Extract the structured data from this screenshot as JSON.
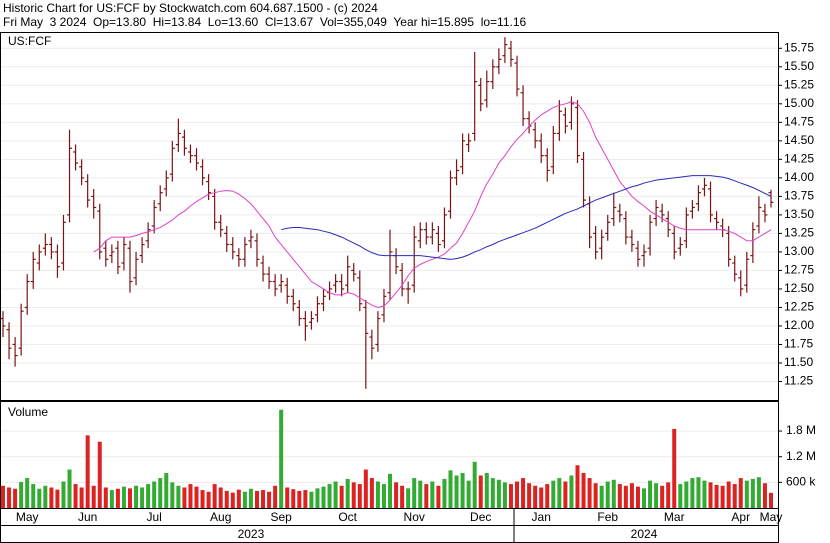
{
  "chart_data": {
    "type": "ohlc",
    "title": "Historic Chart for US:FCF by Stockwatch.com 604.687.1500 - (c) 2024",
    "subtitle": "Fri May  3 2024  Op=13.80  Hi=13.84  Lo=13.60  Cl=13.67  Vol=355,049  Year hi=15.895  lo=11.16",
    "symbol": "US:FCF",
    "grid": true,
    "ohlc_color": "#7a1414",
    "categories": [
      null,
      null,
      null,
      null,
      "May",
      null,
      null,
      null,
      null,
      null,
      null,
      null,
      null,
      null,
      "Jun",
      null,
      null,
      null,
      null,
      null,
      null,
      null,
      null,
      null,
      null,
      "Jul",
      null,
      null,
      null,
      null,
      null,
      null,
      null,
      null,
      null,
      null,
      "Aug",
      null,
      null,
      null,
      null,
      null,
      null,
      null,
      null,
      null,
      "Sep",
      null,
      null,
      null,
      null,
      null,
      null,
      null,
      null,
      null,
      null,
      "Oct",
      null,
      null,
      null,
      null,
      null,
      null,
      null,
      null,
      null,
      null,
      "Nov",
      null,
      null,
      null,
      null,
      null,
      null,
      null,
      null,
      null,
      null,
      "Dec",
      null,
      null,
      null,
      null,
      null,
      null,
      null,
      null,
      null,
      "Jan",
      null,
      null,
      null,
      null,
      null,
      null,
      null,
      null,
      null,
      null,
      "Feb",
      null,
      null,
      null,
      null,
      null,
      null,
      null,
      null,
      null,
      null,
      "Mar",
      null,
      null,
      null,
      null,
      null,
      null,
      null,
      null,
      null,
      null,
      "Apr",
      null,
      null,
      null,
      null,
      "May"
    ],
    "years": [
      null,
      null,
      null,
      null,
      null,
      null,
      null,
      null,
      null,
      null,
      null,
      null,
      null,
      null,
      null,
      null,
      null,
      null,
      null,
      null,
      null,
      null,
      null,
      null,
      null,
      null,
      null,
      null,
      null,
      null,
      null,
      null,
      null,
      null,
      null,
      null,
      null,
      null,
      null,
      null,
      null,
      "2023",
      null,
      null,
      null,
      null,
      null,
      null,
      null,
      null,
      null,
      null,
      null,
      null,
      null,
      null,
      null,
      null,
      null,
      null,
      null,
      null,
      null,
      null,
      null,
      null,
      null,
      null,
      null,
      null,
      null,
      null,
      null,
      null,
      null,
      null,
      null,
      null,
      null,
      null,
      null,
      null,
      null,
      null,
      null,
      null,
      null,
      null,
      null,
      null,
      null,
      null,
      null,
      null,
      null,
      null,
      null,
      null,
      null,
      null,
      null,
      null,
      null,
      null,
      null,
      null,
      "2024",
      null,
      null,
      null,
      null,
      null,
      null,
      null,
      null,
      null,
      null,
      null,
      null,
      null,
      null,
      null,
      null,
      null,
      null,
      null,
      null
    ],
    "open": [
      12.1,
      11.95,
      11.75,
      11.7,
      12.25,
      12.6,
      12.85,
      13.05,
      13.1,
      13.0,
      12.85,
      13.5,
      14.35,
      14.15,
      13.95,
      13.75,
      13.55,
      13.05,
      12.95,
      13.05,
      12.85,
      13.05,
      12.65,
      12.95,
      13.15,
      13.35,
      13.65,
      13.85,
      14.05,
      14.45,
      14.55,
      14.35,
      14.3,
      14.15,
      13.95,
      13.75,
      13.4,
      13.25,
      13.1,
      12.95,
      12.9,
      13.15,
      13.15,
      12.85,
      12.7,
      12.6,
      12.55,
      12.55,
      12.4,
      12.25,
      12.1,
      12.05,
      12.15,
      12.3,
      12.45,
      12.55,
      12.6,
      12.55,
      12.75,
      12.65,
      12.25,
      11.85,
      11.75,
      12.15,
      12.45,
      12.95,
      12.75,
      12.5,
      12.55,
      13.15,
      13.3,
      13.2,
      13.25,
      13.15,
      13.55,
      14.0,
      14.15,
      14.45,
      14.6,
      15.25,
      15.05,
      15.3,
      15.5,
      15.65,
      15.75,
      15.55,
      15.15,
      14.8,
      14.65,
      14.5,
      14.3,
      14.15,
      14.6,
      14.85,
      14.75,
      14.95,
      14.25,
      13.65,
      13.25,
      13.05,
      13.25,
      13.45,
      13.55,
      13.45,
      13.2,
      13.05,
      12.95,
      13.05,
      13.45,
      13.55,
      13.45,
      13.25,
      13.05,
      13.15,
      13.55,
      13.65,
      13.85,
      13.85,
      13.45,
      13.35,
      13.25,
      12.85,
      12.65,
      12.55,
      12.95,
      13.35,
      13.55,
      13.8
    ],
    "high": [
      12.2,
      12.05,
      11.85,
      12.3,
      12.7,
      13.0,
      13.1,
      13.25,
      13.2,
      13.1,
      13.5,
      14.65,
      14.45,
      14.25,
      14.05,
      13.85,
      13.65,
      13.15,
      13.1,
      13.15,
      13.2,
      13.15,
      13.0,
      13.2,
      13.4,
      13.7,
      13.9,
      14.1,
      14.5,
      14.8,
      14.65,
      14.45,
      14.4,
      14.25,
      14.05,
      13.85,
      13.5,
      13.35,
      13.2,
      13.05,
      13.2,
      13.3,
      13.25,
      12.95,
      12.8,
      12.7,
      12.7,
      12.65,
      12.5,
      12.35,
      12.2,
      12.2,
      12.4,
      12.5,
      12.6,
      12.7,
      12.7,
      12.95,
      12.85,
      12.75,
      12.35,
      11.95,
      12.2,
      12.5,
      13.3,
      13.05,
      12.85,
      12.6,
      13.35,
      13.4,
      13.4,
      13.4,
      13.35,
      13.6,
      14.1,
      14.25,
      14.6,
      14.6,
      15.7,
      15.35,
      15.45,
      15.6,
      15.75,
      15.9,
      15.85,
      15.65,
      15.25,
      14.9,
      14.75,
      14.6,
      14.4,
      14.7,
      15.05,
      14.95,
      15.1,
      15.05,
      14.35,
      13.75,
      13.35,
      13.3,
      13.5,
      13.8,
      13.65,
      13.55,
      13.3,
      13.15,
      13.1,
      13.5,
      13.7,
      13.65,
      13.55,
      13.35,
      13.2,
      13.6,
      13.7,
      13.9,
      14.0,
      13.95,
      13.55,
      13.45,
      13.35,
      12.95,
      12.75,
      13.0,
      13.4,
      13.75,
      13.65,
      13.84
    ],
    "low": [
      11.85,
      11.55,
      11.45,
      11.6,
      12.15,
      12.5,
      12.75,
      12.95,
      12.9,
      12.65,
      12.75,
      13.4,
      14.1,
      13.9,
      13.6,
      13.45,
      12.9,
      12.8,
      12.85,
      12.7,
      12.75,
      12.45,
      12.55,
      12.85,
      13.05,
      13.25,
      13.55,
      13.75,
      13.95,
      14.35,
      14.3,
      14.2,
      14.1,
      13.9,
      13.7,
      13.3,
      13.2,
      13.0,
      12.9,
      12.8,
      12.8,
      13.05,
      12.8,
      12.6,
      12.5,
      12.4,
      12.45,
      12.3,
      12.2,
      12.0,
      11.8,
      11.95,
      12.05,
      12.2,
      12.35,
      12.45,
      12.4,
      12.45,
      12.6,
      12.2,
      11.15,
      11.55,
      11.65,
      12.05,
      12.35,
      12.7,
      12.4,
      12.3,
      12.45,
      13.05,
      13.1,
      13.1,
      13.0,
      13.05,
      13.45,
      13.9,
      14.05,
      14.35,
      14.5,
      14.9,
      14.95,
      15.2,
      15.4,
      15.55,
      15.5,
      15.1,
      14.7,
      14.6,
      14.4,
      14.2,
      13.95,
      14.05,
      14.5,
      14.6,
      14.65,
      14.2,
      13.6,
      13.05,
      12.9,
      12.9,
      13.15,
      13.35,
      13.4,
      13.1,
      13.0,
      12.8,
      12.8,
      12.95,
      13.35,
      13.4,
      13.2,
      12.9,
      12.95,
      13.05,
      13.45,
      13.55,
      13.75,
      13.4,
      13.3,
      13.2,
      12.8,
      12.6,
      12.4,
      12.45,
      12.85,
      13.25,
      13.4,
      13.6
    ],
    "close": [
      12.0,
      11.7,
      11.6,
      12.2,
      12.6,
      12.9,
      13.0,
      13.1,
      13.0,
      12.8,
      13.4,
      14.4,
      14.2,
      14.0,
      13.7,
      13.6,
      13.0,
      12.9,
      13.0,
      12.8,
      13.1,
      12.6,
      12.9,
      13.1,
      13.3,
      13.6,
      13.8,
      14.0,
      14.4,
      14.6,
      14.4,
      14.3,
      14.2,
      14.0,
      13.8,
      13.4,
      13.3,
      13.1,
      13.0,
      12.9,
      13.1,
      13.2,
      12.9,
      12.7,
      12.6,
      12.5,
      12.6,
      12.4,
      12.3,
      12.1,
      12.0,
      12.1,
      12.3,
      12.4,
      12.5,
      12.6,
      12.5,
      12.8,
      12.7,
      12.3,
      11.9,
      11.7,
      12.1,
      12.4,
      13.0,
      12.8,
      12.5,
      12.5,
      13.2,
      13.3,
      13.2,
      13.3,
      13.1,
      13.5,
      14.0,
      14.1,
      14.5,
      14.5,
      15.3,
      15.0,
      15.3,
      15.5,
      15.6,
      15.8,
      15.6,
      15.2,
      14.8,
      14.7,
      14.5,
      14.3,
      14.1,
      14.6,
      14.9,
      14.7,
      15.0,
      14.3,
      13.7,
      13.2,
      13.0,
      13.2,
      13.4,
      13.6,
      13.5,
      13.2,
      13.1,
      12.9,
      13.0,
      13.4,
      13.6,
      13.5,
      13.3,
      13.0,
      13.1,
      13.5,
      13.6,
      13.8,
      13.9,
      13.5,
      13.4,
      13.3,
      12.9,
      12.7,
      12.5,
      12.9,
      13.3,
      13.6,
      13.5,
      13.67
    ],
    "moving_averages": [
      {
        "color": "#e040c8",
        "values": [
          null,
          null,
          null,
          null,
          null,
          null,
          null,
          null,
          null,
          null,
          null,
          null,
          null,
          null,
          null,
          13.0,
          13.05,
          13.15,
          13.2,
          13.2,
          13.2,
          13.2,
          13.22,
          13.25,
          13.27,
          13.3,
          13.33,
          13.38,
          13.43,
          13.5,
          13.55,
          13.62,
          13.68,
          13.73,
          13.78,
          13.8,
          13.82,
          13.83,
          13.82,
          13.78,
          13.72,
          13.65,
          13.55,
          13.45,
          13.35,
          13.2,
          13.1,
          13.0,
          12.9,
          12.8,
          12.7,
          12.6,
          12.55,
          12.5,
          12.45,
          12.42,
          12.42,
          12.45,
          12.43,
          12.38,
          12.33,
          12.28,
          12.25,
          12.27,
          12.35,
          12.45,
          12.55,
          12.68,
          12.78,
          12.83,
          12.87,
          12.9,
          12.93,
          12.97,
          13.05,
          13.12,
          13.25,
          13.4,
          13.55,
          13.75,
          13.92,
          14.05,
          14.2,
          14.3,
          14.42,
          14.52,
          14.6,
          14.7,
          14.78,
          14.85,
          14.9,
          14.95,
          14.98,
          15.0,
          15.03,
          15.0,
          14.9,
          14.75,
          14.55,
          14.4,
          14.25,
          14.1,
          13.95,
          13.85,
          13.75,
          13.68,
          13.62,
          13.55,
          13.5,
          13.45,
          13.4,
          13.35,
          13.32,
          13.3,
          13.3,
          13.3,
          13.3,
          13.3,
          13.3,
          13.3,
          13.28,
          13.25,
          13.2,
          13.15,
          13.15,
          13.2,
          13.25,
          13.3
        ]
      },
      {
        "color": "#2a2ab8",
        "values": [
          null,
          null,
          null,
          null,
          null,
          null,
          null,
          null,
          null,
          null,
          null,
          null,
          null,
          null,
          null,
          null,
          null,
          null,
          null,
          null,
          null,
          null,
          null,
          null,
          null,
          null,
          null,
          null,
          null,
          null,
          null,
          null,
          null,
          null,
          null,
          null,
          null,
          null,
          null,
          null,
          null,
          null,
          null,
          null,
          null,
          null,
          13.3,
          13.32,
          13.33,
          13.33,
          13.32,
          13.31,
          13.3,
          13.28,
          13.26,
          13.23,
          13.2,
          13.16,
          13.12,
          13.08,
          13.03,
          12.99,
          12.96,
          12.95,
          12.95,
          12.95,
          12.95,
          12.95,
          12.95,
          12.95,
          12.94,
          12.93,
          12.92,
          12.91,
          12.9,
          12.91,
          12.93,
          12.96,
          13.0,
          13.03,
          13.07,
          13.1,
          13.14,
          13.17,
          13.2,
          13.23,
          13.26,
          13.29,
          13.32,
          13.36,
          13.4,
          13.44,
          13.48,
          13.52,
          13.55,
          13.58,
          13.62,
          13.66,
          13.7,
          13.73,
          13.76,
          13.79,
          13.82,
          13.85,
          13.88,
          13.9,
          13.93,
          13.95,
          13.97,
          13.98,
          13.99,
          14.0,
          14.01,
          14.02,
          14.03,
          14.03,
          14.03,
          14.03,
          14.02,
          14.01,
          13.99,
          13.96,
          13.93,
          13.9,
          13.87,
          13.83,
          13.79,
          13.75
        ]
      }
    ],
    "ylim": [
      11.0,
      15.97
    ],
    "yticks": [
      11.25,
      {
        "value": 11.5,
        "label": "11.50"
      },
      11.75,
      {
        "value": 12.0,
        "label": "12.00"
      },
      12.25,
      {
        "value": 12.5,
        "label": "12.50"
      },
      12.75,
      {
        "value": 13.0,
        "label": "13.00"
      },
      13.25,
      {
        "value": 13.5,
        "label": "13.50"
      },
      13.75,
      {
        "value": 14.0,
        "label": "14.00"
      },
      14.25,
      {
        "value": 14.5,
        "label": "14.50"
      },
      14.75,
      {
        "value": 15.0,
        "label": "15.00"
      },
      15.25,
      {
        "value": 15.5,
        "label": "15.50"
      },
      15.75
    ],
    "volume": {
      "label": "Volume",
      "up_color": "#33aa33",
      "down_color": "#dd2222",
      "values": [
        520000,
        480000,
        450000,
        610000,
        700000,
        560000,
        450000,
        520000,
        480000,
        430000,
        620000,
        900000,
        560000,
        480000,
        1700000,
        520000,
        1550000,
        480000,
        420000,
        450000,
        500000,
        460000,
        520000,
        480000,
        560000,
        620000,
        700000,
        820000,
        600000,
        520000,
        480000,
        560000,
        500000,
        420000,
        380000,
        560000,
        480000,
        400000,
        360000,
        430000,
        380000,
        450000,
        400000,
        420000,
        380000,
        520000,
        2300000,
        480000,
        440000,
        400000,
        420000,
        380000,
        460000,
        500000,
        560000,
        620000,
        520000,
        680000,
        600000,
        560000,
        900000,
        700000,
        620000,
        560000,
        800000,
        600000,
        520000,
        460000,
        700000,
        640000,
        560000,
        620000,
        520000,
        680000,
        880000,
        760000,
        820000,
        640000,
        1080000,
        760000,
        820000,
        700000,
        660000,
        600000,
        560000,
        620000,
        700000,
        580000,
        520000,
        480000,
        560000,
        640000,
        700000,
        620000,
        760000,
        1000000,
        820000,
        700000,
        580000,
        520000,
        620000,
        660000,
        560000,
        520000,
        580000,
        500000,
        460000,
        640000,
        580000,
        520000,
        600000,
        1850000,
        560000,
        620000,
        700000,
        720000,
        640000,
        600000,
        540000,
        520000,
        620000,
        560000,
        700000,
        640000,
        680000,
        720000,
        580000,
        355049
      ],
      "ylim": [
        0,
        2480000
      ],
      "yticks": [
        {
          "value": 600000,
          "label": "600 k"
        },
        {
          "value": 1200000,
          "label": "1.2 M"
        },
        {
          "value": 1800000,
          "label": "1.8 M"
        }
      ]
    }
  }
}
